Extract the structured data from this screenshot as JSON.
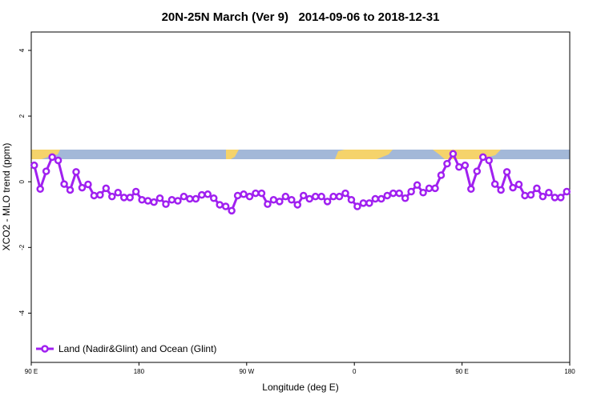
{
  "chart_data": {
    "type": "line",
    "title": "20N-25N March (Ver 9)   2014-09-06 to 2018-12-31",
    "x_label": "Longitude (deg E)",
    "y_label": "XCO2 - MLO trend (ppm)",
    "x": [
      92.5,
      97.5,
      102.5,
      107.5,
      112.5,
      117.5,
      122.5,
      127.5,
      132.5,
      137.5,
      142.5,
      147.5,
      152.5,
      157.5,
      162.5,
      167.5,
      172.5,
      177.5,
      182.5,
      187.5,
      192.5,
      197.5,
      202.5,
      207.5,
      212.5,
      217.5,
      222.5,
      227.5,
      232.5,
      237.5,
      242.5,
      247.5,
      252.5,
      257.5,
      262.5,
      267.5,
      272.5,
      277.5,
      282.5,
      287.5,
      292.5,
      297.5,
      302.5,
      307.5,
      312.5,
      317.5,
      322.5,
      327.5,
      332.5,
      337.5,
      342.5,
      347.5,
      352.5,
      357.5,
      362.5,
      367.5,
      372.5,
      377.5,
      382.5,
      387.5,
      392.5,
      397.5,
      402.5,
      407.5,
      412.5,
      417.5,
      422.5,
      427.5,
      432.5,
      437.5,
      442.5,
      447.5,
      452.5,
      457.5,
      462.5,
      467.5,
      472.5,
      477.5,
      482.5,
      487.5,
      492.5,
      497.5,
      502.5,
      507.5,
      512.5,
      517.5,
      522.5,
      527.5,
      532.5,
      537.5
    ],
    "series": [
      {
        "name": "Land (Nadir&Glint) and Ocean (Glint)",
        "color": "#a020f0",
        "values": [
          0.5,
          -0.22,
          0.32,
          0.75,
          0.65,
          -0.07,
          -0.25,
          0.3,
          -0.18,
          -0.08,
          -0.42,
          -0.4,
          -0.2,
          -0.45,
          -0.33,
          -0.48,
          -0.48,
          -0.3,
          -0.55,
          -0.58,
          -0.62,
          -0.5,
          -0.68,
          -0.55,
          -0.58,
          -0.45,
          -0.52,
          -0.52,
          -0.4,
          -0.38,
          -0.5,
          -0.7,
          -0.75,
          -0.88,
          -0.42,
          -0.38,
          -0.45,
          -0.35,
          -0.35,
          -0.68,
          -0.55,
          -0.6,
          -0.45,
          -0.55,
          -0.7,
          -0.42,
          -0.52,
          -0.45,
          -0.45,
          -0.6,
          -0.45,
          -0.45,
          -0.35,
          -0.55,
          -0.75,
          -0.65,
          -0.65,
          -0.52,
          -0.52,
          -0.42,
          -0.35,
          -0.35,
          -0.5,
          -0.3,
          -0.1,
          -0.33,
          -0.2,
          -0.2,
          0.2,
          0.55,
          0.85,
          0.45,
          0.5,
          -0.22,
          0.32,
          0.75,
          0.65,
          -0.07,
          -0.25,
          0.3,
          -0.18,
          -0.08,
          -0.42,
          -0.4,
          -0.2,
          -0.45,
          -0.33,
          -0.48,
          -0.48,
          -0.3
        ]
      }
    ],
    "xlim": [
      90,
      540
    ],
    "xticks": [
      {
        "value": 90,
        "label": "90 E"
      },
      {
        "value": 180,
        "label": "180"
      },
      {
        "value": 270,
        "label": "90 W"
      },
      {
        "value": 360,
        "label": "0"
      },
      {
        "value": 450,
        "label": "90 E"
      },
      {
        "value": 540,
        "label": "180"
      }
    ],
    "ylim": [
      -5.5,
      4.56
    ],
    "yticks": [
      -4,
      -2,
      0,
      2,
      4
    ],
    "legend": "bottom-left"
  }
}
